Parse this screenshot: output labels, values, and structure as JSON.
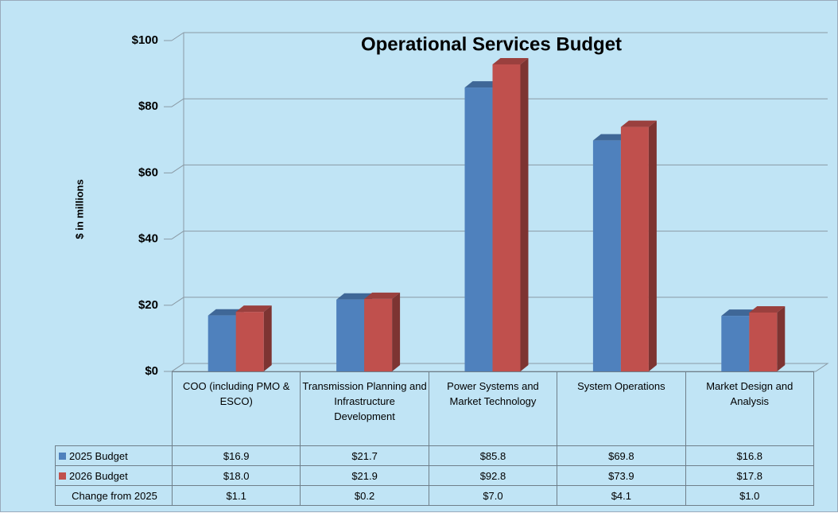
{
  "chart_data": {
    "type": "bar3d",
    "title": "Operational Services Budget",
    "y_label": "$ in millions",
    "categories": [
      "COO (including PMO & ESCO)",
      "Transmission Planning and Infrastructure Development",
      "Power Systems and Market Technology",
      "System Operations",
      "Market Design and Analysis"
    ],
    "series": [
      {
        "name": "2025 Budget",
        "color": "#4f81bd",
        "values": [
          16.9,
          21.7,
          85.8,
          69.8,
          16.8
        ],
        "value_labels": [
          "$16.9",
          "$21.7",
          "$85.8",
          "$69.8",
          "$16.8"
        ]
      },
      {
        "name": "2026 Budget",
        "color": "#c0504d",
        "values": [
          18.0,
          21.9,
          92.8,
          73.9,
          17.8
        ],
        "value_labels": [
          "$18.0",
          "$21.9",
          "$92.8",
          "$73.9",
          "$17.8"
        ]
      }
    ],
    "change": {
      "name": "Change from 2025",
      "values": [
        1.1,
        0.2,
        7.0,
        4.1,
        1.0
      ],
      "value_labels": [
        "$1.1",
        "$0.2",
        "$7.0",
        "$4.1",
        "$1.0"
      ]
    },
    "ylim": [
      0,
      100
    ],
    "yticks": [
      {
        "value": 0,
        "label": "$0"
      },
      {
        "value": 20,
        "label": "$20"
      },
      {
        "value": 40,
        "label": "$40"
      },
      {
        "value": 60,
        "label": "$60"
      },
      {
        "value": 80,
        "label": "$80"
      },
      {
        "value": 100,
        "label": "$100"
      }
    ],
    "grid": true
  }
}
